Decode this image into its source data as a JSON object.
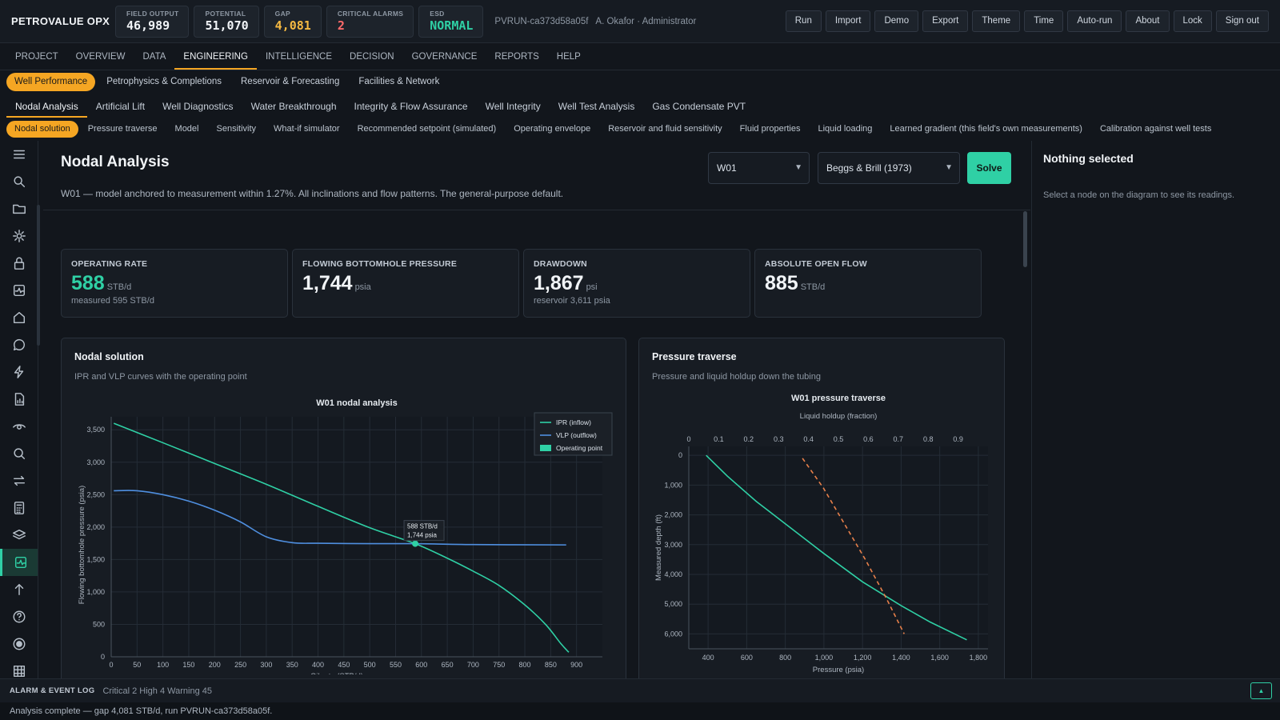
{
  "brand": "PETROVALUE OPX",
  "kpis": [
    {
      "label": "FIELD OUTPUT",
      "value": "46,989",
      "color": "#f1f4f7"
    },
    {
      "label": "POTENTIAL",
      "value": "51,070",
      "color": "#f1f4f7"
    },
    {
      "label": "GAP",
      "value": "4,081",
      "color": "#f5b942"
    },
    {
      "label": "CRITICAL ALARMS",
      "value": "2",
      "color": "#ff6b6b"
    },
    {
      "label": "ESD",
      "value": "NORMAL",
      "color": "#2fd0a5"
    }
  ],
  "run_info": "PVRUN-ca373d58a05f",
  "user_info": "A. Okafor · Administrator",
  "top_buttons": [
    "Run",
    "Import",
    "Demo",
    "Export",
    "Theme",
    "Time",
    "Auto-run",
    "About",
    "Lock",
    "Sign out"
  ],
  "main_nav": [
    "PROJECT",
    "OVERVIEW",
    "DATA",
    "ENGINEERING",
    "INTELLIGENCE",
    "DECISION",
    "GOVERNANCE",
    "REPORTS",
    "HELP"
  ],
  "main_nav_active": "ENGINEERING",
  "subnav1": [
    "Well Performance",
    "Petrophysics & Completions",
    "Reservoir & Forecasting",
    "Facilities & Network"
  ],
  "subnav2": [
    "Nodal Analysis",
    "Artificial Lift",
    "Well Diagnostics",
    "Water Breakthrough",
    "Integrity & Flow Assurance",
    "Well Integrity",
    "Well Test Analysis",
    "Gas Condensate PVT"
  ],
  "subnav3": [
    "Nodal solution",
    "Pressure traverse",
    "Model",
    "Sensitivity",
    "What-if simulator",
    "Recommended setpoint (simulated)",
    "Operating envelope",
    "Reservoir and fluid sensitivity",
    "Fluid properties",
    "Liquid loading",
    "Learned gradient (this field's own measurements)",
    "Calibration against well tests"
  ],
  "rail_icons": [
    "menu-icon",
    "search-icon",
    "folder-icon",
    "gear-icon",
    "lock-icon",
    "activity-icon",
    "home-icon",
    "chat-icon",
    "bolt-icon",
    "report-icon",
    "eye-icon",
    "magnify-icon",
    "swap-icon",
    "calculator-icon",
    "layers-icon",
    "pulse-icon",
    "arrow-up-icon",
    "help-icon",
    "record-icon",
    "grid-icon"
  ],
  "rail_active_index": 15,
  "page": {
    "title": "Nodal Analysis",
    "subtitle": "W01 — model anchored to measurement within 1.27%. All inclinations and flow patterns. The general-purpose default.",
    "well_select": "W01",
    "correlation_select": "Beggs & Brill (1973)",
    "solve_label": "Solve"
  },
  "cards": [
    {
      "label": "OPERATING RATE",
      "value": "588",
      "unit": "STB/d",
      "note": "measured 595 STB/d",
      "color": "#2fd0a5"
    },
    {
      "label": "FLOWING BOTTOMHOLE PRESSURE",
      "value": "1,744",
      "unit": "psia",
      "note": "",
      "color": "#f1f4f7"
    },
    {
      "label": "DRAWDOWN",
      "value": "1,867",
      "unit": "psi",
      "note": "reservoir 3,611 psia",
      "color": "#f1f4f7"
    },
    {
      "label": "ABSOLUTE OPEN FLOW",
      "value": "885",
      "unit": "STB/d",
      "note": "",
      "color": "#f1f4f7"
    }
  ],
  "nodal_panel": {
    "title": "Nodal solution",
    "subtitle": "IPR and VLP curves with the operating point"
  },
  "traverse_panel": {
    "title": "Pressure traverse",
    "subtitle": "Pressure and liquid holdup down the tubing"
  },
  "side": {
    "title": "Nothing selected",
    "text": "Select a node on the diagram to see its readings."
  },
  "alarm": {
    "title": "ALARM & EVENT LOG",
    "counts": "Critical 2  High 4  Warning 45"
  },
  "status": "Analysis complete — gap 4,081 STB/d, run PVRUN-ca373d58a05f.",
  "chart_data": [
    {
      "type": "line",
      "title": "W01 nodal analysis",
      "xlabel": "Oil rate (STB/d)",
      "ylabel": "Flowing bottomhole pressure (psia)",
      "xlim": [
        0,
        950
      ],
      "ylim": [
        0,
        3700
      ],
      "xticks": [
        0,
        50,
        100,
        150,
        200,
        250,
        300,
        350,
        400,
        450,
        500,
        550,
        600,
        650,
        700,
        750,
        800,
        850,
        900
      ],
      "yticks": [
        0,
        500,
        1000,
        1500,
        2000,
        2500,
        3000,
        3500
      ],
      "ytick_labels": [
        "0",
        "500",
        "1,000",
        "1,500",
        "2,000",
        "2,500",
        "3,000",
        "3,500"
      ],
      "grid": true,
      "legend": "top-right",
      "series": [
        {
          "name": "IPR (inflow)",
          "color": "#2fd0a5",
          "x": [
            5,
            100,
            200,
            300,
            400,
            500,
            588,
            650,
            700,
            750,
            800,
            840,
            870,
            885
          ],
          "y": [
            3600,
            3300,
            2980,
            2660,
            2320,
            1990,
            1744,
            1520,
            1320,
            1100,
            800,
            500,
            200,
            70
          ]
        },
        {
          "name": "VLP (outflow)",
          "color": "#4f8fe0",
          "x": [
            5,
            50,
            100,
            150,
            200,
            250,
            300,
            350,
            400,
            500,
            588,
            700,
            880
          ],
          "y": [
            2560,
            2560,
            2500,
            2400,
            2260,
            2080,
            1850,
            1760,
            1750,
            1745,
            1744,
            1730,
            1725
          ]
        }
      ],
      "operating_point": {
        "name": "Operating point",
        "x": 588,
        "y": 1744,
        "label1": "588 STB/d",
        "label2": "1,744 psia",
        "color": "#2fd0a5"
      }
    },
    {
      "type": "line",
      "title": "W01 pressure traverse",
      "xlabel": "Pressure (psia)",
      "ylabel": "Measured depth (ft)",
      "x2label": "Liquid holdup (fraction)",
      "xlim": [
        300,
        1850
      ],
      "ylim": [
        6500,
        -300
      ],
      "x2lim": [
        0,
        1.0
      ],
      "xticks": [
        400,
        600,
        800,
        1000,
        1200,
        1400,
        1600,
        1800
      ],
      "xtick_labels": [
        "400",
        "600",
        "800",
        "1,000",
        "1,200",
        "1,400",
        "1,600",
        "1,800"
      ],
      "yticks": [
        0,
        1000,
        2000,
        3000,
        4000,
        5000,
        6000
      ],
      "ytick_labels": [
        "0",
        "1,000",
        "2,000",
        "3,000",
        "4,000",
        "5,000",
        "6,000"
      ],
      "x2ticks": [
        0,
        0.1,
        0.2,
        0.3,
        0.4,
        0.5,
        0.6,
        0.7,
        0.8,
        0.9
      ],
      "grid": true,
      "series": [
        {
          "name": "Pressure",
          "color": "#2fd0a5",
          "x": [
            390,
            500,
            650,
            800,
            1000,
            1200,
            1400,
            1550,
            1740
          ],
          "y": [
            0,
            700,
            1550,
            2300,
            3300,
            4250,
            5050,
            5600,
            6200
          ]
        },
        {
          "name": "Liquid holdup",
          "color": "#e8804a",
          "axis": "x2",
          "x": [
            0.38,
            0.45,
            0.52,
            0.59,
            0.66,
            0.72
          ],
          "y": [
            100,
            1100,
            2300,
            3500,
            4800,
            6000
          ]
        }
      ]
    }
  ]
}
